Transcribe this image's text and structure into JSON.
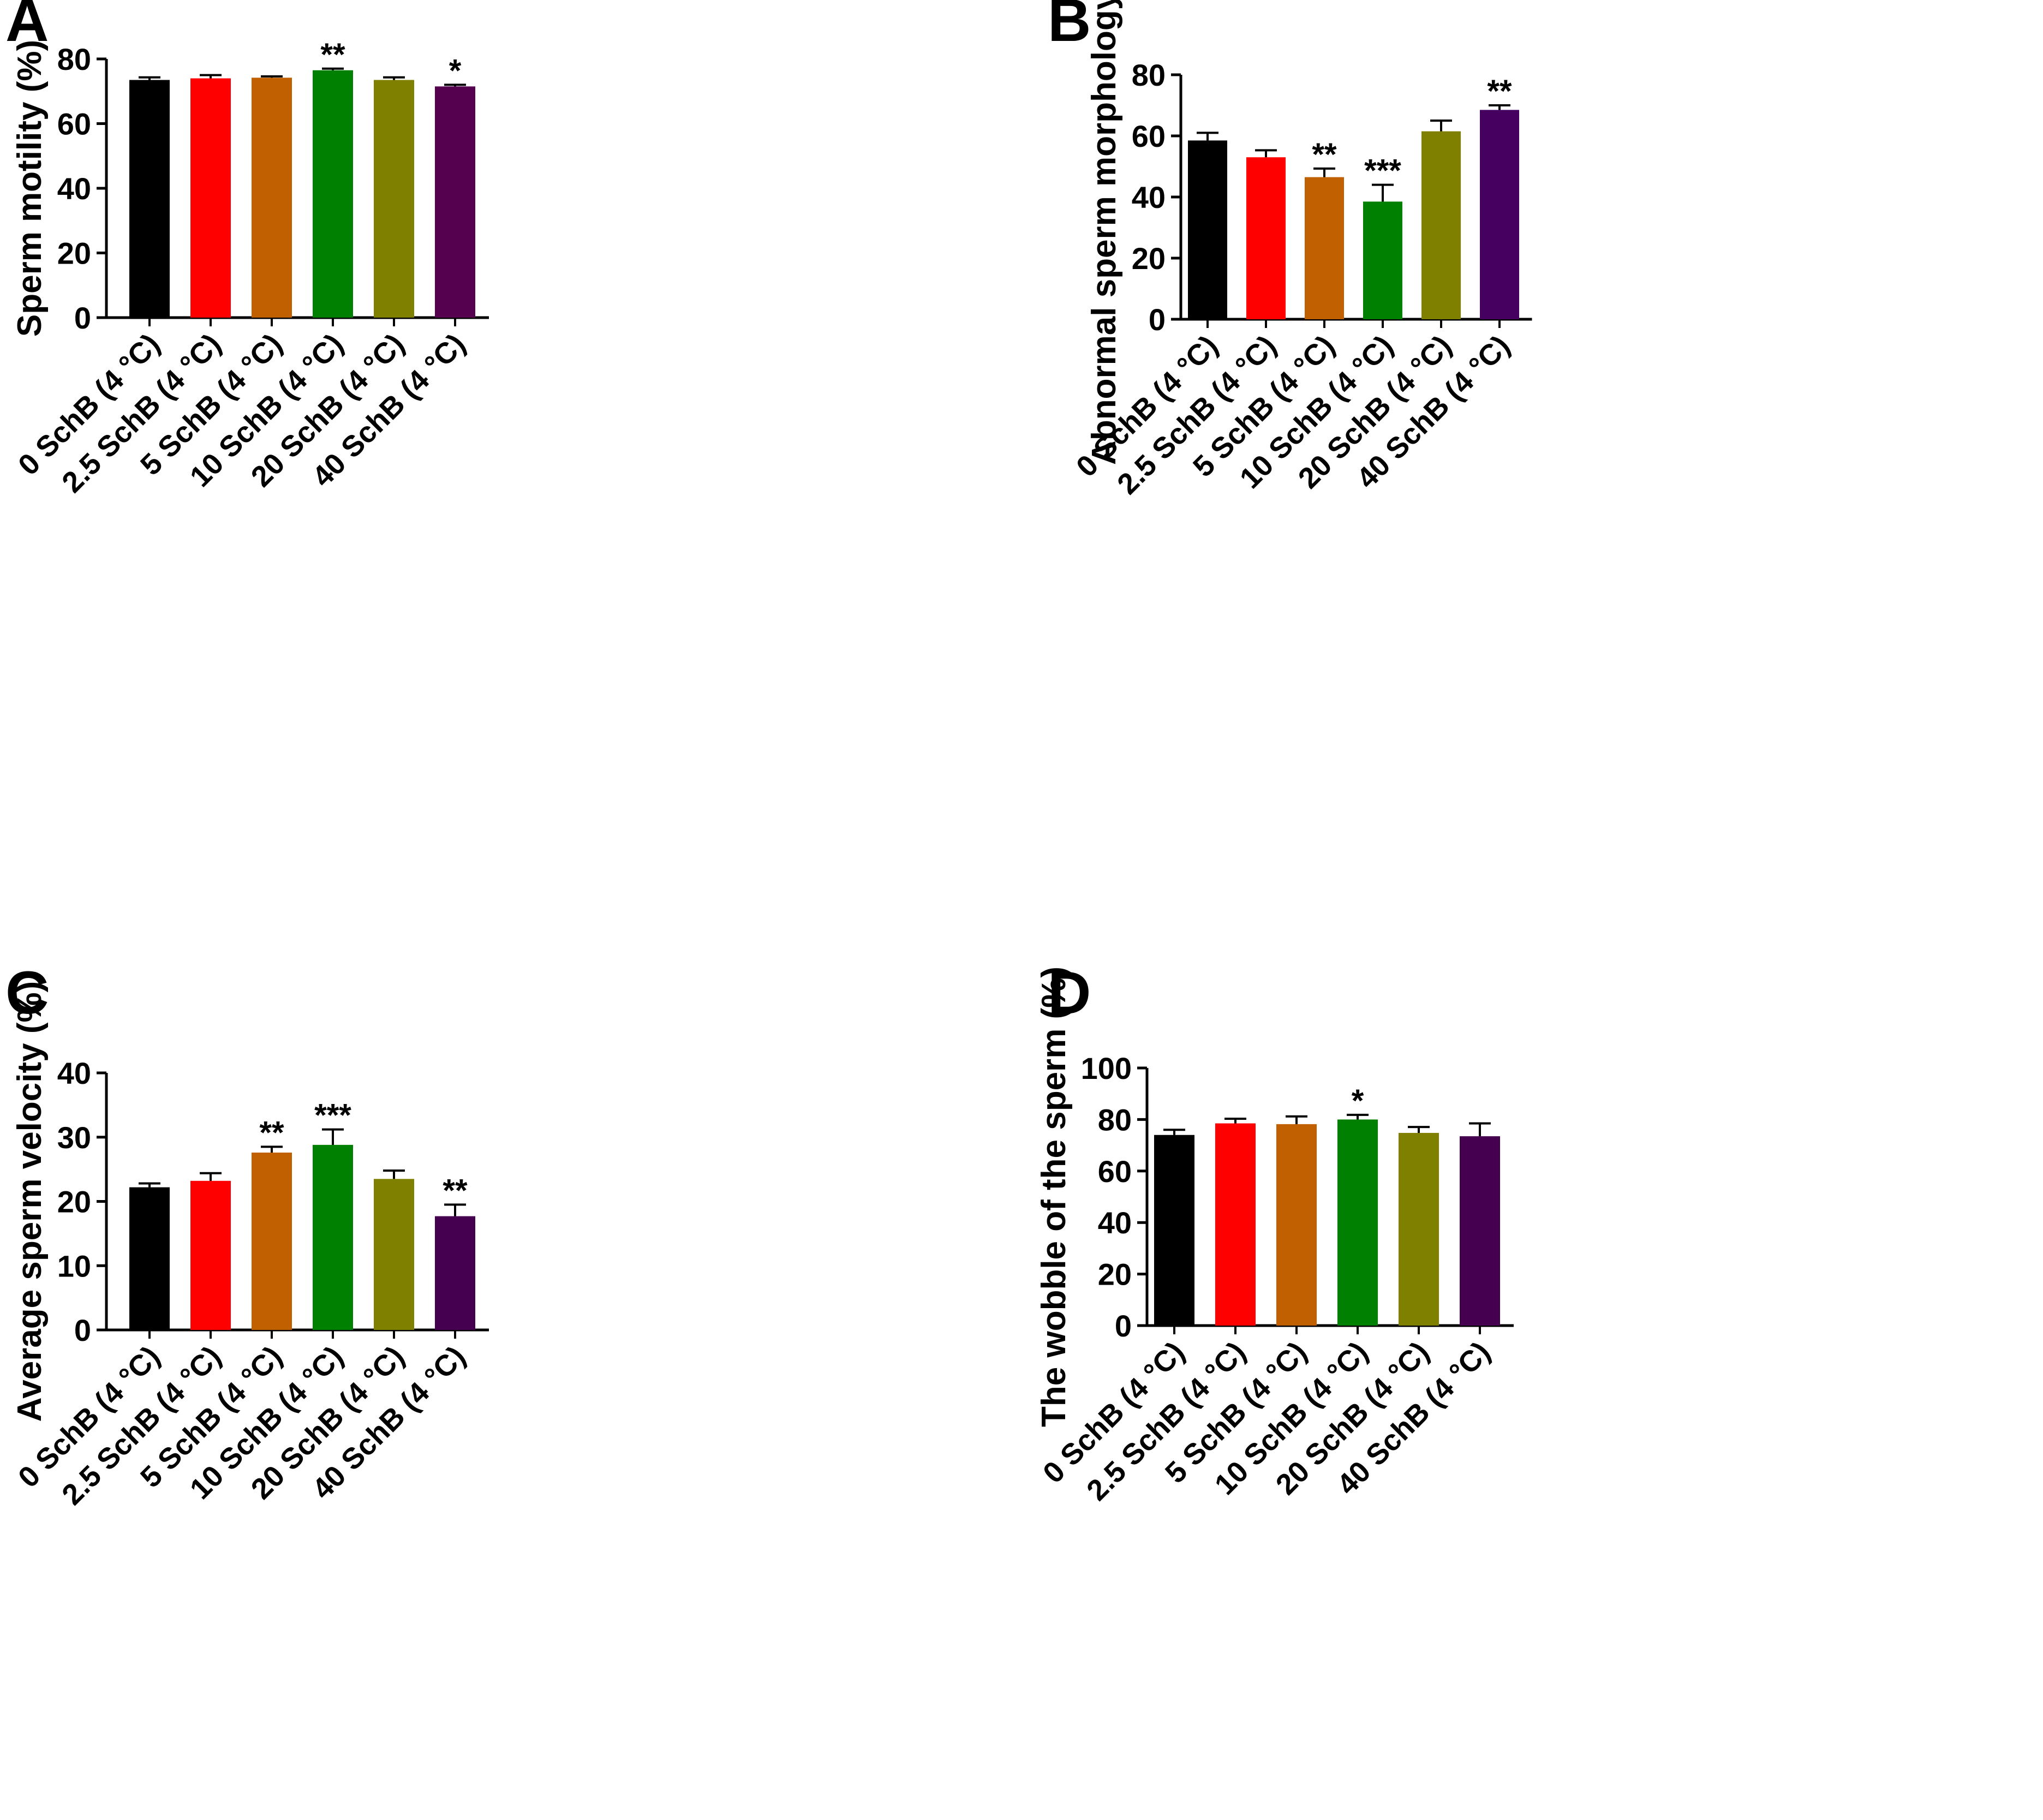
{
  "chart_data": [
    {
      "panel": "A",
      "type": "bar",
      "ylabel": "Sperm motility (%)",
      "ylim": [
        0,
        80
      ],
      "yticks": [
        0,
        20,
        40,
        60,
        80
      ],
      "categories": [
        "0 SchB (4 °C)",
        "2.5 SchB (4 °C)",
        "5 SchB (4 °C)",
        "10 SchB (4 °C)",
        "20 SchB (4 °C)",
        "40 SchB (4 °C)"
      ],
      "values": [
        73.5,
        74,
        74.2,
        76.5,
        73.5,
        71.5
      ],
      "errors": [
        0.8,
        1.0,
        0.4,
        0.5,
        0.8,
        0.5
      ],
      "significance": [
        "",
        "",
        "",
        "**",
        "",
        "*"
      ],
      "colors": [
        "#000000",
        "#ff0000",
        "#c06000",
        "#008000",
        "#808000",
        "#560050"
      ]
    },
    {
      "panel": "B",
      "type": "bar",
      "ylabel": "Abnormal sperm morphology (%)",
      "ylim": [
        0,
        80
      ],
      "yticks": [
        0,
        20,
        40,
        60,
        80
      ],
      "categories": [
        "0 SchB (4 °C)",
        "2.5 SchB (4 °C)",
        "5 SchB (4 °C)",
        "10 SchB (4 °C)",
        "20 SchB (4 °C)",
        "40 SchB (4 °C)"
      ],
      "values": [
        58.5,
        53,
        46.5,
        38.5,
        61.5,
        68.5
      ],
      "errors": [
        2.5,
        2.3,
        2.8,
        5.5,
        3.5,
        1.5
      ],
      "significance": [
        "",
        "",
        "**",
        "***",
        "",
        "**"
      ],
      "colors": [
        "#000000",
        "#ff0000",
        "#c06000",
        "#008000",
        "#808000",
        "#460060"
      ]
    },
    {
      "panel": "C",
      "type": "bar",
      "ylabel": "Average sperm velocity (%)",
      "ylim": [
        0,
        40
      ],
      "yticks": [
        0,
        10,
        20,
        30,
        40
      ],
      "categories": [
        "0 SchB (4 °C)",
        "2.5 SchB (4 °C)",
        "5 SchB (4 °C)",
        "10 SchB (4 °C)",
        "20 SchB (4 °C)",
        "40 SchB (4 °C)"
      ],
      "values": [
        22.2,
        23.2,
        27.6,
        28.8,
        23.5,
        17.7
      ],
      "errors": [
        0.6,
        1.2,
        0.9,
        2.4,
        1.3,
        1.8
      ],
      "significance": [
        "",
        "",
        "**",
        "***",
        "",
        "**"
      ],
      "colors": [
        "#000000",
        "#ff0000",
        "#c06000",
        "#008000",
        "#808000",
        "#460050"
      ]
    },
    {
      "panel": "D",
      "type": "bar",
      "ylabel": "The wobble of the sperm (%)",
      "ylim": [
        0,
        100
      ],
      "yticks": [
        0,
        20,
        40,
        60,
        80,
        100
      ],
      "categories": [
        "0 SchB (4 °C)",
        "2.5 SchB (4 °C)",
        "5 SchB (4 °C)",
        "10 SchB (4 °C)",
        "20 SchB (4 °C)",
        "40 SchB (4 °C)"
      ],
      "values": [
        74,
        78.5,
        78.2,
        80,
        74.8,
        73.5
      ],
      "errors": [
        2.0,
        1.8,
        3.0,
        1.8,
        2.3,
        5.0
      ],
      "significance": [
        "",
        "",
        "",
        "*",
        "",
        ""
      ],
      "colors": [
        "#000000",
        "#ff0000",
        "#c06000",
        "#008000",
        "#808000",
        "#460050"
      ]
    }
  ]
}
